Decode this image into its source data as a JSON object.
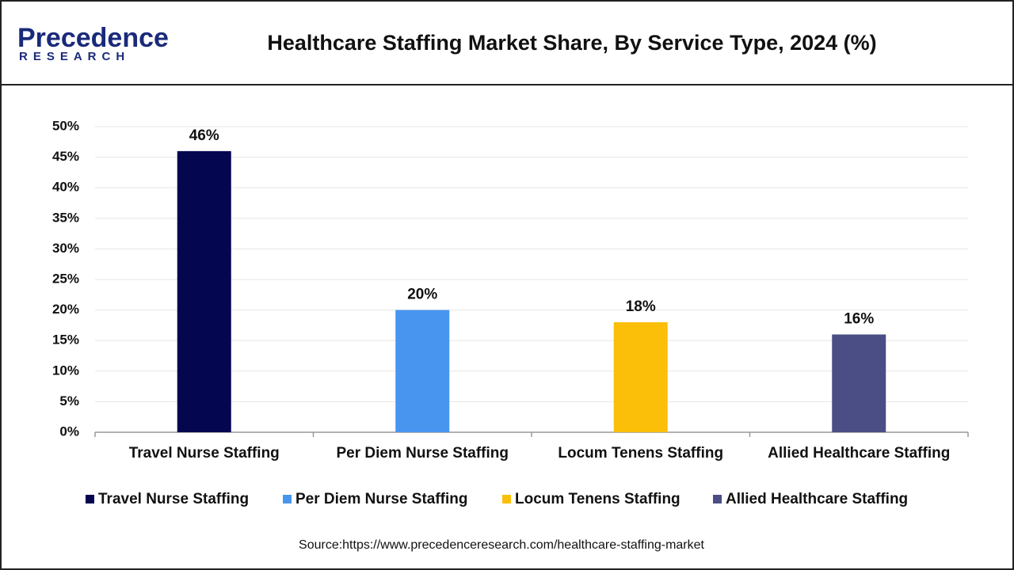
{
  "logo": {
    "name": "Precedence",
    "tagline": "RESEARCH"
  },
  "chart_data": {
    "type": "bar",
    "title": "Healthcare Staffing Market Share, By Service Type, 2024 (%)",
    "categories": [
      "Travel Nurse Staffing",
      "Per Diem Nurse Staffing",
      "Locum Tenens Staffing",
      "Allied Healthcare Staffing"
    ],
    "values": [
      46,
      20,
      18,
      16
    ],
    "value_labels": [
      "46%",
      "20%",
      "18%",
      "16%"
    ],
    "colors": [
      "#04064f",
      "#4895ef",
      "#fbbf0a",
      "#4a4e85"
    ],
    "ylim": [
      0,
      50
    ],
    "yticks": [
      {
        "value": 0,
        "label": "0%"
      },
      {
        "value": 5,
        "label": "5%"
      },
      {
        "value": 10,
        "label": "10%"
      },
      {
        "value": 15,
        "label": "15%"
      },
      {
        "value": 20,
        "label": "20%"
      },
      {
        "value": 25,
        "label": "25%"
      },
      {
        "value": 30,
        "label": "30%"
      },
      {
        "value": 35,
        "label": "35%"
      },
      {
        "value": 40,
        "label": "40%"
      },
      {
        "value": 45,
        "label": "45%"
      },
      {
        "value": 50,
        "label": "50%"
      }
    ],
    "grid": true,
    "legend": "bottom",
    "source": "Source:https://www.precedenceresearch.com/healthcare-staffing-market"
  }
}
